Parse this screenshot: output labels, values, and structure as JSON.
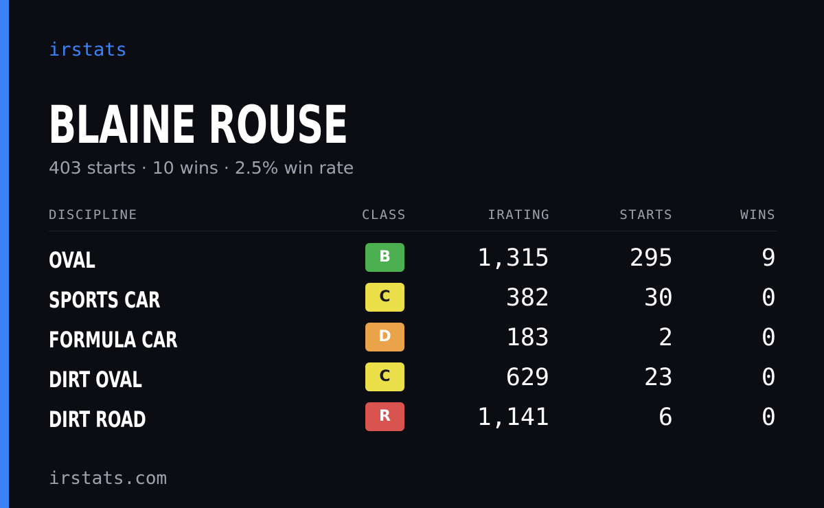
{
  "brand": "irstats",
  "driver": {
    "name": "BLAINE ROUSE"
  },
  "summary": {
    "starts": "403 starts",
    "wins": "10 wins",
    "win_rate": "2.5% win rate",
    "separator": "·"
  },
  "table": {
    "headers": {
      "discipline": "DISCIPLINE",
      "class": "CLASS",
      "irating": "IRATING",
      "starts": "STARTS",
      "wins": "WINS"
    },
    "rows": [
      {
        "discipline": "OVAL",
        "class": "B",
        "irating": "1,315",
        "starts": "295",
        "wins": "9"
      },
      {
        "discipline": "SPORTS CAR",
        "class": "C",
        "irating": "382",
        "starts": "30",
        "wins": "0"
      },
      {
        "discipline": "FORMULA CAR",
        "class": "D",
        "irating": "183",
        "starts": "2",
        "wins": "0"
      },
      {
        "discipline": "DIRT OVAL",
        "class": "C",
        "irating": "629",
        "starts": "23",
        "wins": "0"
      },
      {
        "discipline": "DIRT ROAD",
        "class": "R",
        "irating": "1,141",
        "starts": "6",
        "wins": "0"
      }
    ]
  },
  "class_colors": {
    "B": {
      "bg": "#4caf50",
      "fg": "#ffffff"
    },
    "C": {
      "bg": "#ece04a",
      "fg": "#1a1a1a"
    },
    "D": {
      "bg": "#eaa34b",
      "fg": "#ffffff"
    },
    "R": {
      "bg": "#d9534f",
      "fg": "#ffffff"
    }
  },
  "colors": {
    "accent": "#3b82f6",
    "background": "#0b0d13",
    "muted_text": "#9ca3af"
  },
  "footer": "irstats.com"
}
